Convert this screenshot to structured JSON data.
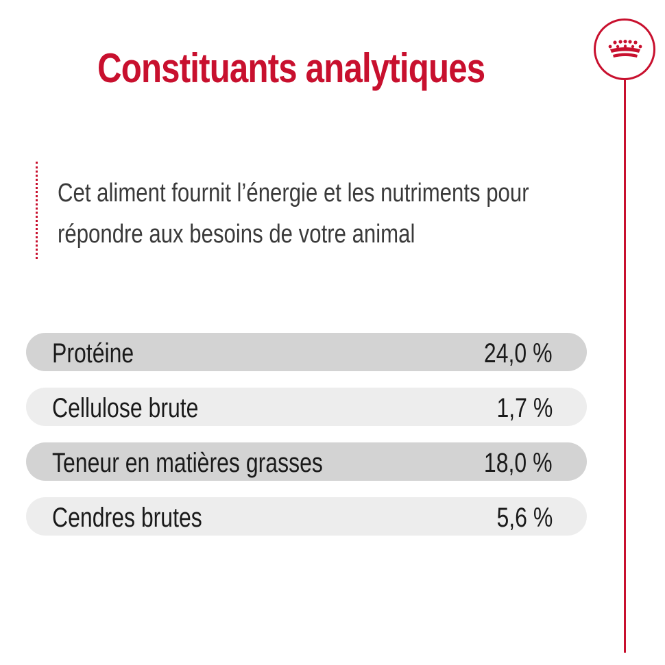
{
  "heading": "Constituants analytiques",
  "intro": "Cet aliment fournit l’énergie et les nutriments pour répondre aux besoins de votre animal",
  "rows": [
    {
      "label": "Protéine",
      "value": "24,0 %"
    },
    {
      "label": "Cellulose brute",
      "value": "1,7 %"
    },
    {
      "label": "Teneur en matières grasses",
      "value": "18,0 %"
    },
    {
      "label": "Cendres brutes",
      "value": "5,6 %"
    }
  ],
  "colors": {
    "accent": "#c8102e",
    "row_dark": "#d3d3d3",
    "row_light": "#ededed",
    "text": "#1a1a1a"
  },
  "icons": [
    "crown-logo-icon"
  ]
}
